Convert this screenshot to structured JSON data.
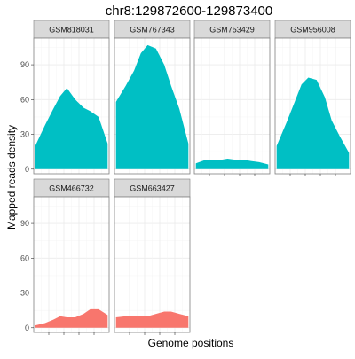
{
  "chart_data": {
    "type": "area",
    "title": "chr8:129872600-129873400",
    "xlabel": "Genome positions",
    "ylabel": "Mapped reads density",
    "ylim": [
      -4,
      113
    ],
    "yticks": [
      0,
      30,
      60,
      90
    ],
    "xlim": [
      0,
      10
    ],
    "xticks": [
      2,
      4,
      6,
      8
    ],
    "grid": true,
    "legend": "none",
    "layout": {
      "columns": 4,
      "rows": 2
    },
    "colors": {
      "group1": "#00BFC4",
      "group2": "#F8766D",
      "strip_bg": "#d9d9d9",
      "panel_border": "#7f7f7f",
      "grid": "#ebebeb"
    },
    "x": [
      0.2,
      1.5,
      2.6,
      3.5,
      4.4,
      5.5,
      6.6,
      7.5,
      8.6,
      9.8
    ],
    "panels": [
      {
        "name": "GSM818031",
        "color": "#00BFC4",
        "values": [
          20,
          38,
          52,
          63,
          70,
          60,
          53,
          50,
          45,
          22
        ]
      },
      {
        "name": "GSM767343",
        "color": "#00BFC4",
        "values": [
          58,
          72,
          85,
          100,
          107,
          104,
          90,
          72,
          52,
          22
        ]
      },
      {
        "name": "GSM753429",
        "color": "#00BFC4",
        "values": [
          5,
          8,
          8,
          8,
          9,
          8,
          8,
          7,
          6,
          4
        ]
      },
      {
        "name": "GSM956008",
        "color": "#00BFC4",
        "values": [
          20,
          40,
          58,
          73,
          79,
          77,
          62,
          42,
          28,
          14
        ]
      },
      {
        "name": "GSM466732",
        "color": "#F8766D",
        "values": [
          2,
          4,
          7,
          10,
          9,
          9,
          12,
          16,
          16,
          11
        ]
      },
      {
        "name": "GSM663427",
        "color": "#F8766D",
        "values": [
          9,
          10,
          10,
          10,
          10,
          12,
          14,
          14,
          12,
          10
        ]
      }
    ]
  }
}
